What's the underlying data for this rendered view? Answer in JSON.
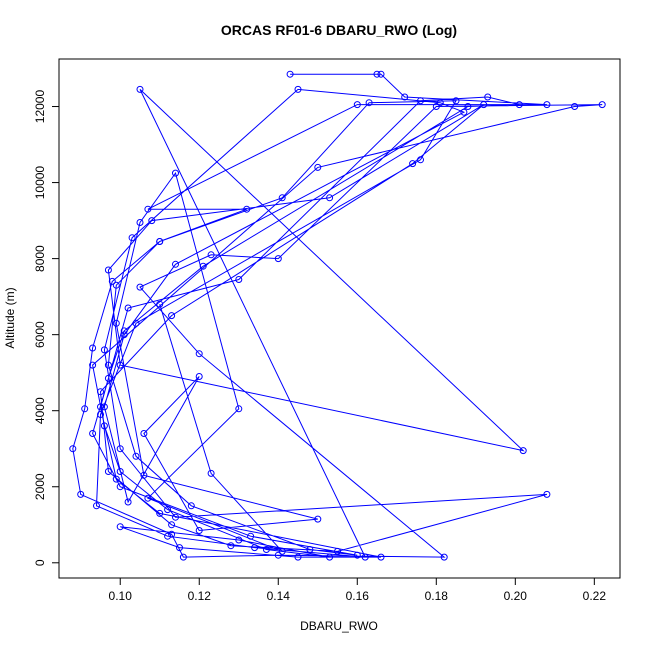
{
  "chart_data": {
    "type": "line",
    "title": "ORCAS RF01-6 DBARU_RWO (Log)",
    "xlabel": "DBARU_RWO",
    "ylabel": "Altitude (m)",
    "xlim": [
      0.0845,
      0.2265
    ],
    "ylim": [
      -400,
      13250
    ],
    "xticks": [
      0.1,
      0.12,
      0.14,
      0.16,
      0.18,
      0.2,
      0.22
    ],
    "xtick_labels": [
      "0.10",
      "0.12",
      "0.14",
      "0.16",
      "0.18",
      "0.20",
      "0.22"
    ],
    "yticks": [
      0,
      2000,
      4000,
      6000,
      8000,
      10000,
      12000
    ],
    "ytick_labels": [
      "0",
      "2000",
      "4000",
      "6000",
      "8000",
      "10000",
      "12000"
    ],
    "grid": false,
    "legend": "none",
    "marker": "open-circle",
    "series_color": "#0000ff",
    "series": [
      {
        "points": [
          [
            0.143,
            12850
          ],
          [
            0.165,
            12850
          ],
          [
            0.166,
            12850
          ],
          [
            0.172,
            12250
          ],
          [
            0.208,
            12050
          ],
          [
            0.16,
            12050
          ],
          [
            0.107,
            9300
          ],
          [
            0.132,
            9300
          ],
          [
            0.11,
            8450
          ],
          [
            0.098,
            7400
          ],
          [
            0.093,
            5650
          ],
          [
            0.091,
            4050
          ],
          [
            0.088,
            3000
          ],
          [
            0.09,
            1800
          ],
          [
            0.113,
            750
          ],
          [
            0.116,
            150
          ],
          [
            0.14,
            200
          ],
          [
            0.182,
            150
          ],
          [
            0.12,
            5500
          ],
          [
            0.105,
            7250
          ],
          [
            0.123,
            8100
          ],
          [
            0.14,
            8000
          ],
          [
            0.18,
            12000
          ],
          [
            0.222,
            12050
          ],
          [
            0.215,
            12000
          ],
          [
            0.15,
            10400
          ],
          [
            0.093,
            5200
          ],
          [
            0.096,
            3600
          ],
          [
            0.1,
            2400
          ],
          [
            0.112,
            1400
          ],
          [
            0.137,
            350
          ],
          [
            0.153,
            150
          ],
          [
            0.13,
            600
          ],
          [
            0.1,
            950
          ],
          [
            0.115,
            400
          ],
          [
            0.145,
            150
          ],
          [
            0.166,
            150
          ],
          [
            0.11,
            1300
          ],
          [
            0.099,
            2200
          ],
          [
            0.095,
            4100
          ],
          [
            0.102,
            6700
          ],
          [
            0.13,
            7450
          ],
          [
            0.176,
            12150
          ],
          [
            0.193,
            12250
          ],
          [
            0.201,
            12050
          ],
          [
            0.188,
            12000
          ],
          [
            0.121,
            7800
          ],
          [
            0.101,
            6100
          ],
          [
            0.097,
            4850
          ],
          [
            0.093,
            3400
          ],
          [
            0.1,
            2000
          ],
          [
            0.133,
            700
          ],
          [
            0.16,
            200
          ],
          [
            0.148,
            350
          ],
          [
            0.118,
            1500
          ],
          [
            0.104,
            2800
          ],
          [
            0.097,
            5200
          ],
          [
            0.099,
            7300
          ],
          [
            0.11,
            8450
          ],
          [
            0.141,
            9600
          ],
          [
            0.163,
            12100
          ],
          [
            0.185,
            12150
          ],
          [
            0.176,
            10600
          ],
          [
            0.104,
            6300
          ],
          [
            0.095,
            3900
          ],
          [
            0.094,
            1500
          ],
          [
            0.112,
            700
          ],
          [
            0.134,
            400
          ],
          [
            0.162,
            150
          ],
          [
            0.105,
            12450
          ],
          [
            0.202,
            2950
          ],
          [
            0.1,
            5200
          ],
          [
            0.097,
            7700
          ],
          [
            0.108,
            9000
          ],
          [
            0.153,
            9600
          ],
          [
            0.192,
            12050
          ],
          [
            0.174,
            10500
          ],
          [
            0.113,
            6500
          ],
          [
            0.095,
            4500
          ],
          [
            0.097,
            2400
          ],
          [
            0.113,
            1000
          ],
          [
            0.128,
            450
          ],
          [
            0.155,
            300
          ],
          [
            0.208,
            1800
          ],
          [
            0.114,
            1200
          ],
          [
            0.1,
            3000
          ],
          [
            0.096,
            5600
          ],
          [
            0.103,
            8550
          ],
          [
            0.145,
            12450
          ],
          [
            0.181,
            12100
          ],
          [
            0.187,
            11850
          ],
          [
            0.114,
            7850
          ],
          [
            0.101,
            6000
          ],
          [
            0.096,
            4100
          ],
          [
            0.102,
            1600
          ],
          [
            0.12,
            4900
          ],
          [
            0.106,
            3400
          ],
          [
            0.12,
            850
          ],
          [
            0.15,
            1150
          ],
          [
            0.106,
            2300
          ],
          [
            0.099,
            6300
          ],
          [
            0.105,
            8950
          ],
          [
            0.114,
            10250
          ],
          [
            0.13,
            4050
          ],
          [
            0.107,
            1700
          ],
          [
            0.141,
            300
          ],
          [
            0.123,
            2350
          ],
          [
            0.11,
            6800
          ]
        ]
      }
    ]
  }
}
